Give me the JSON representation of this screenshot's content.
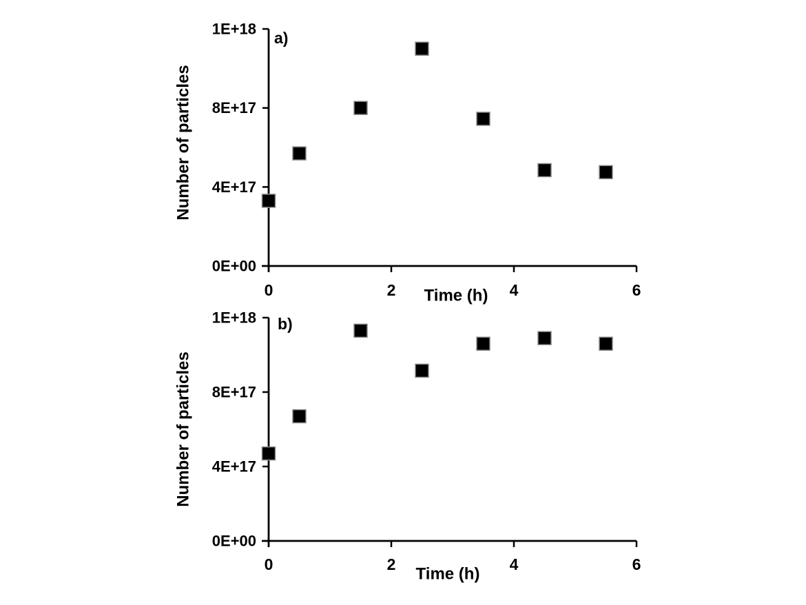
{
  "figure": {
    "background_color": "#ffffff",
    "axis_color": "#000000",
    "marker_fill_color": "#000000",
    "marker_border_color": "#8a8a8a"
  },
  "chart_data": [
    {
      "type": "scatter",
      "panel_label": "a)",
      "title": "",
      "xlabel": "Time (h)",
      "ylabel": "Number of particles",
      "x": [
        0,
        0.5,
        1.5,
        2.5,
        3.5,
        4.5,
        5.5
      ],
      "y": [
        3.3e+17,
        5.7e+17,
        8e+17,
        1.1e+18,
        7.45e+17,
        4.85e+17,
        4.75e+17
      ],
      "xlim": [
        0,
        6
      ],
      "ylim": [
        0,
        1.2e+18
      ],
      "x_ticks": [
        0,
        2,
        4,
        6
      ],
      "x_tick_labels": [
        "0",
        "2",
        "4",
        "6"
      ],
      "y_ticks": [
        0,
        4e+17,
        8e+17,
        1.2e+18
      ],
      "y_tick_labels": [
        "0E+00",
        "4E+17",
        "8E+17",
        "1E+18"
      ],
      "marker": "square",
      "grid": false,
      "legend": null
    },
    {
      "type": "scatter",
      "panel_label": "b)",
      "title": "",
      "xlabel": "Time (h)",
      "ylabel": "Number of particles",
      "x": [
        0,
        0.5,
        1.5,
        2.5,
        3.5,
        4.5,
        5.5
      ],
      "y": [
        4.7e+17,
        6.7e+17,
        1.13e+18,
        9.15e+17,
        1.06e+18,
        1.09e+18,
        1.06e+18
      ],
      "xlim": [
        0,
        6
      ],
      "ylim": [
        0,
        1.2e+18
      ],
      "x_ticks": [
        0,
        2,
        4,
        6
      ],
      "x_tick_labels": [
        "0",
        "2",
        "4",
        "6"
      ],
      "y_ticks": [
        0,
        4e+17,
        8e+17,
        1.2e+18
      ],
      "y_tick_labels": [
        "0E+00",
        "4E+17",
        "8E+17",
        "1E+18"
      ],
      "marker": "square",
      "grid": false,
      "legend": null
    }
  ]
}
